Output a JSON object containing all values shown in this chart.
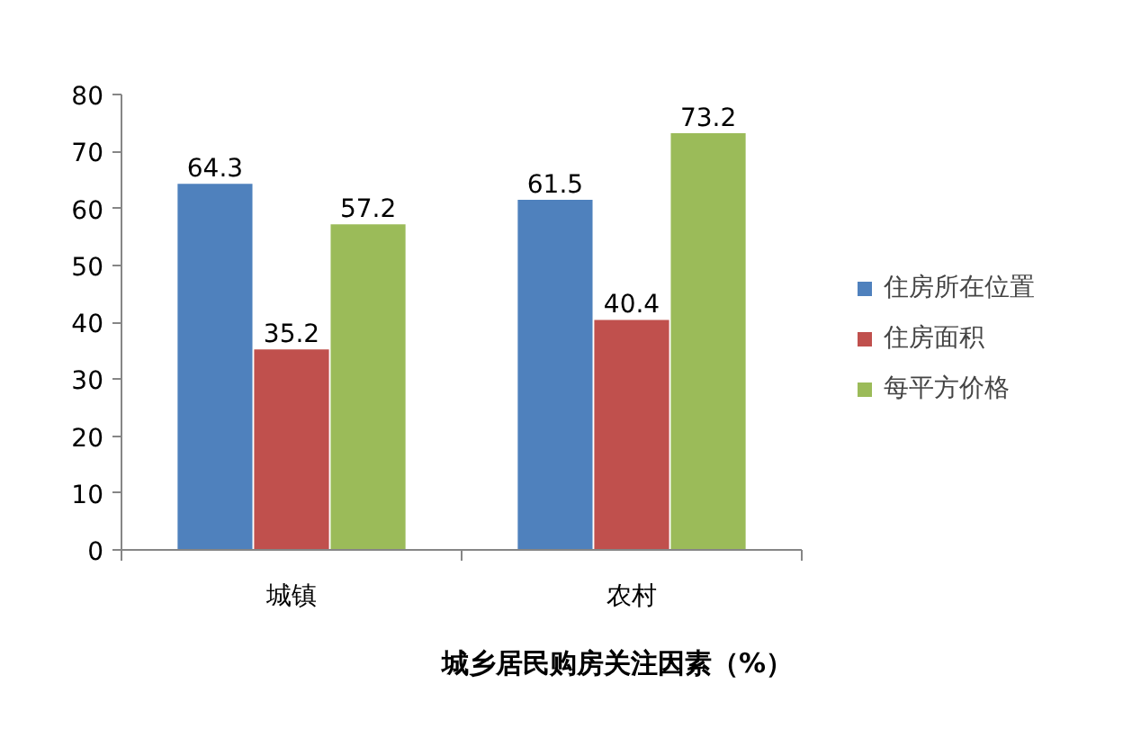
{
  "chart_data": {
    "type": "bar",
    "title": "城乡居民购房关注因素（%）",
    "categories": [
      "城镇",
      "农村"
    ],
    "series": [
      {
        "name": "住房所在位置",
        "color": "#4f81bd",
        "values": [
          64.3,
          61.5
        ]
      },
      {
        "name": "住房面积",
        "color": "#c0504d",
        "values": [
          35.2,
          40.4
        ]
      },
      {
        "name": "每平方价格",
        "color": "#9bbb59",
        "values": [
          57.2,
          73.2
        ]
      }
    ],
    "ylim": [
      0,
      80
    ],
    "yticks": [
      0,
      10,
      20,
      30,
      40,
      50,
      60,
      70,
      80
    ],
    "grid": false,
    "legend": "right",
    "data_labels": true
  }
}
